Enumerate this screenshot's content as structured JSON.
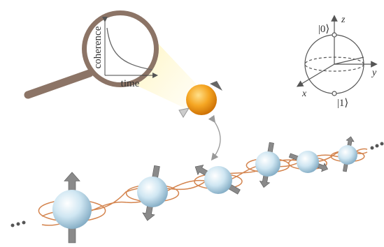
{
  "magnifier": {
    "y_label": "coherence",
    "x_label": "time"
  },
  "bloch_sphere": {
    "state_zero": "|0⟩",
    "state_one": "|1⟩",
    "axis_z": "z",
    "axis_y": "y",
    "axis_x": "x"
  }
}
